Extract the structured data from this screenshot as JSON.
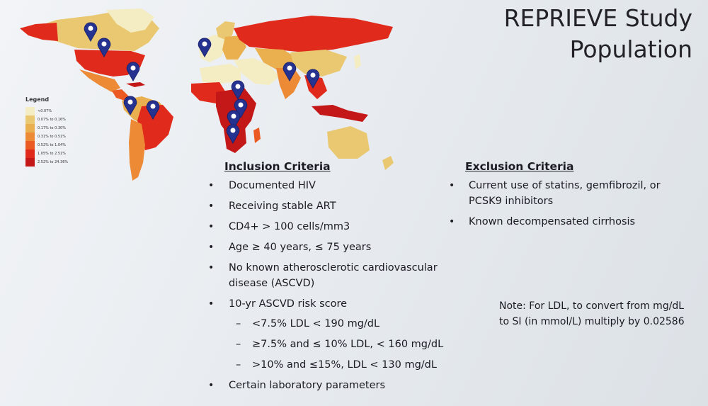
{
  "title": {
    "line1": "REPRIEVE Study",
    "line2": "Population"
  },
  "legend": {
    "title": "Legend",
    "items": [
      {
        "label": "<0.07%",
        "color": "#f4edc3"
      },
      {
        "label": "0.07% to 0.16%",
        "color": "#e9c871"
      },
      {
        "label": "0.17% to 0.30%",
        "color": "#eab050"
      },
      {
        "label": "0.31% to 0.51%",
        "color": "#ec8a36"
      },
      {
        "label": "0.52% to 1.04%",
        "color": "#ea5a22"
      },
      {
        "label": "1.05% to 2.51%",
        "color": "#df2a1c"
      },
      {
        "label": "2.52% to 24.36%",
        "color": "#c41717"
      }
    ]
  },
  "map": {
    "marker_color": "#26328f"
  },
  "inclusion": {
    "heading": "Inclusion Criteria",
    "items": [
      "Documented HIV",
      "Receiving stable ART",
      "CD4+ > 100 cells/mm3",
      "Age ≥ 40 years, ≤ 75 years",
      "No known atherosclerotic cardiovascular disease (ASCVD)",
      "10-yr ASCVD risk score",
      "Certain laboratory parameters"
    ],
    "sub_items": [
      "<7.5% LDL < 190 mg/dL",
      "≥7.5% and ≤ 10% LDL, < 160 mg/dL",
      ">10% and ≤15%, LDL < 130 mg/dL"
    ]
  },
  "exclusion": {
    "heading": "Exclusion Criteria",
    "items": [
      "Current use of statins, gemfibrozil, or PCSK9 inhibitors",
      "Known decompensated cirrhosis"
    ]
  },
  "note": "Note: For LDL, to convert from mg/dL to SI (in mmol/L) multiply by 0.02586"
}
